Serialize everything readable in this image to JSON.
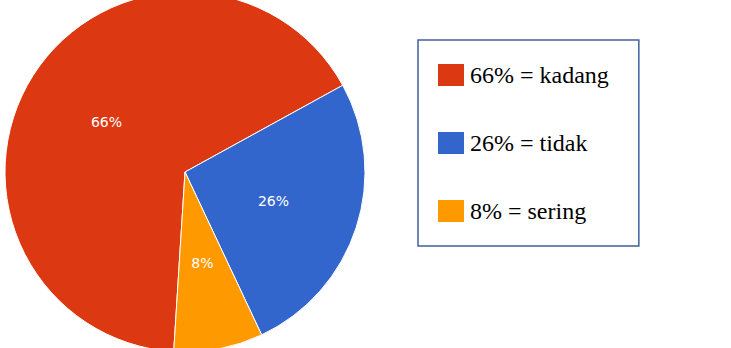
{
  "chart_data": {
    "type": "pie",
    "categories": [
      "66% = kadang",
      "26% = tidak",
      "8% = sering"
    ],
    "values": [
      66,
      26,
      8
    ],
    "value_labels": [
      "66%",
      "26%",
      "8%"
    ],
    "colors": [
      "#dc3912",
      "#3366cc",
      "#ff9900"
    ],
    "data_labels": true,
    "legend": "right"
  }
}
